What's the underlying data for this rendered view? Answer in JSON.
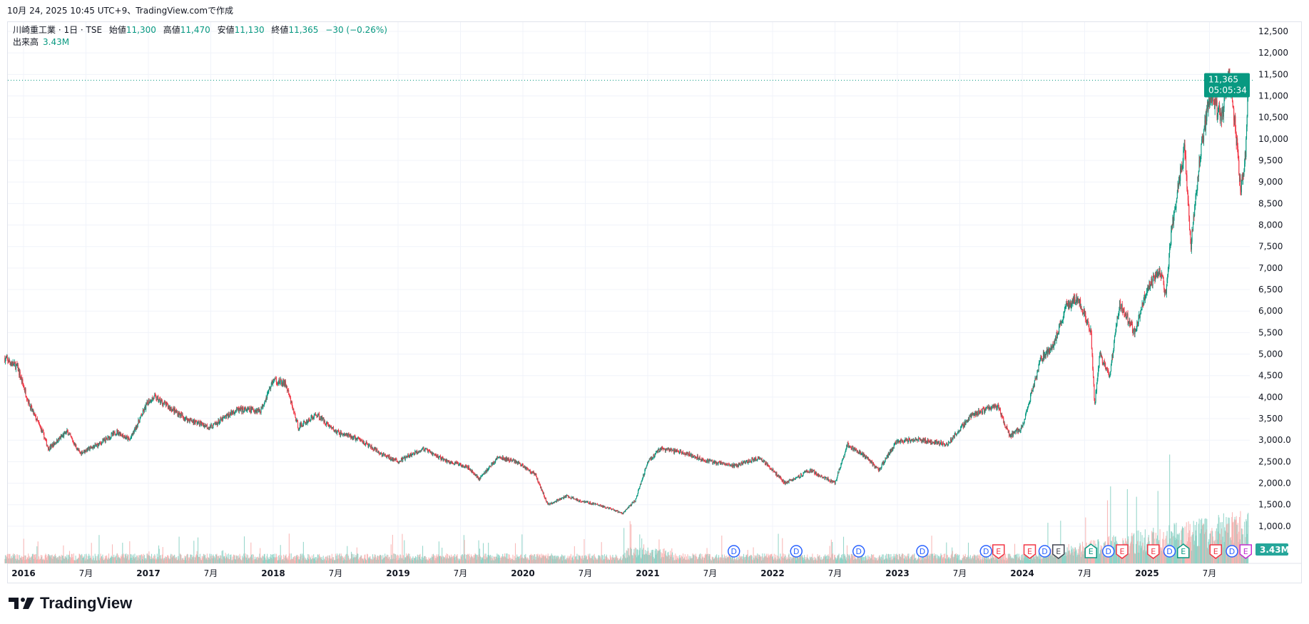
{
  "caption": "10月 24, 2025 10:45 UTC+9、TradingView.comで作成",
  "legend": {
    "symbol": "川崎重工業 · 1日 · TSE",
    "open_label": "始値",
    "open": "11,300",
    "high_label": "高値",
    "high": "11,470",
    "low_label": "安値",
    "low": "11,130",
    "close_label": "終値",
    "close": "11,365",
    "change": "−30 (−0.26%)",
    "volume_label": "出来高",
    "volume": "3.43M"
  },
  "price_tag": {
    "price": "11,365",
    "countdown": "05:05:34"
  },
  "volume_tag": "3.43M",
  "logo": "TradingView",
  "colors": {
    "up": "#089981",
    "down": "#f23645",
    "up_vol": "#7fcdbf",
    "down_vol": "#f7a9a7"
  },
  "chart_data": {
    "type": "candlestick",
    "symbol": "川崎重工業",
    "interval": "1日",
    "ylim": [
      700,
      12800
    ],
    "y_ticks": [
      "12,500",
      "12,000",
      "11,500",
      "11,000",
      "10,500",
      "10,000",
      "9,500",
      "9,000",
      "8,500",
      "8,000",
      "7,500",
      "7,000",
      "6,500",
      "6,000",
      "5,500",
      "5,000",
      "4,500",
      "4,000",
      "3,500",
      "3,000.0",
      "2,500.0",
      "2,000.0",
      "1,500.0",
      "1,000.0"
    ],
    "y_tick_values": [
      12500,
      12000,
      11500,
      11000,
      10500,
      10000,
      9500,
      9000,
      8500,
      8000,
      7500,
      7000,
      6500,
      6000,
      5500,
      5000,
      4500,
      4000,
      3500,
      3000,
      2500,
      2000,
      1500,
      1000
    ],
    "x_ticks": [
      {
        "t": 2016.0,
        "label": "2016"
      },
      {
        "t": 2016.5,
        "label": "7月"
      },
      {
        "t": 2017.0,
        "label": "2017"
      },
      {
        "t": 2017.5,
        "label": "7月"
      },
      {
        "t": 2018.0,
        "label": "2018"
      },
      {
        "t": 2018.5,
        "label": "7月"
      },
      {
        "t": 2019.0,
        "label": "2019"
      },
      {
        "t": 2019.5,
        "label": "7月"
      },
      {
        "t": 2020.0,
        "label": "2020"
      },
      {
        "t": 2020.5,
        "label": "7月"
      },
      {
        "t": 2021.0,
        "label": "2021"
      },
      {
        "t": 2021.5,
        "label": "7月"
      },
      {
        "t": 2022.0,
        "label": "2022"
      },
      {
        "t": 2022.5,
        "label": "7月"
      },
      {
        "t": 2023.0,
        "label": "2023"
      },
      {
        "t": 2023.5,
        "label": "7月"
      },
      {
        "t": 2024.0,
        "label": "2024"
      },
      {
        "t": 2024.5,
        "label": "7月"
      },
      {
        "t": 2025.0,
        "label": "2025"
      },
      {
        "t": 2025.5,
        "label": "7月"
      }
    ],
    "price_path": [
      [
        2015.85,
        4900
      ],
      [
        2015.95,
        4700
      ],
      [
        2016.05,
        3800
      ],
      [
        2016.15,
        3200
      ],
      [
        2016.2,
        2800
      ],
      [
        2016.35,
        3200
      ],
      [
        2016.45,
        2700
      ],
      [
        2016.6,
        2900
      ],
      [
        2016.75,
        3200
      ],
      [
        2016.85,
        3000
      ],
      [
        2017.0,
        3900
      ],
      [
        2017.05,
        4000
      ],
      [
        2017.3,
        3500
      ],
      [
        2017.5,
        3300
      ],
      [
        2017.7,
        3700
      ],
      [
        2017.9,
        3700
      ],
      [
        2018.0,
        4400
      ],
      [
        2018.1,
        4300
      ],
      [
        2018.2,
        3300
      ],
      [
        2018.35,
        3600
      ],
      [
        2018.5,
        3200
      ],
      [
        2018.7,
        3000
      ],
      [
        2018.85,
        2700
      ],
      [
        2019.0,
        2500
      ],
      [
        2019.2,
        2800
      ],
      [
        2019.4,
        2500
      ],
      [
        2019.55,
        2400
      ],
      [
        2019.65,
        2100
      ],
      [
        2019.8,
        2600
      ],
      [
        2019.95,
        2500
      ],
      [
        2020.1,
        2200
      ],
      [
        2020.2,
        1500
      ],
      [
        2020.35,
        1700
      ],
      [
        2020.45,
        1600
      ],
      [
        2020.6,
        1500
      ],
      [
        2020.8,
        1300
      ],
      [
        2020.9,
        1600
      ],
      [
        2021.0,
        2500
      ],
      [
        2021.1,
        2800
      ],
      [
        2021.3,
        2700
      ],
      [
        2021.5,
        2500
      ],
      [
        2021.7,
        2400
      ],
      [
        2021.9,
        2600
      ],
      [
        2022.1,
        2000
      ],
      [
        2022.3,
        2300
      ],
      [
        2022.5,
        2000
      ],
      [
        2022.6,
        2900
      ],
      [
        2022.75,
        2600
      ],
      [
        2022.85,
        2300
      ],
      [
        2023.0,
        3000
      ],
      [
        2023.2,
        3000
      ],
      [
        2023.4,
        2900
      ],
      [
        2023.6,
        3600
      ],
      [
        2023.7,
        3700
      ],
      [
        2023.8,
        3800
      ],
      [
        2023.9,
        3100
      ],
      [
        2024.0,
        3300
      ],
      [
        2024.15,
        4900
      ],
      [
        2024.25,
        5200
      ],
      [
        2024.35,
        6100
      ],
      [
        2024.45,
        6300
      ],
      [
        2024.55,
        5500
      ],
      [
        2024.58,
        3800
      ],
      [
        2024.62,
        5000
      ],
      [
        2024.7,
        4500
      ],
      [
        2024.78,
        6200
      ],
      [
        2024.9,
        5500
      ],
      [
        2025.0,
        6500
      ],
      [
        2025.1,
        7000
      ],
      [
        2025.15,
        6400
      ],
      [
        2025.2,
        8000
      ],
      [
        2025.3,
        9800
      ],
      [
        2025.35,
        7500
      ],
      [
        2025.42,
        9500
      ],
      [
        2025.5,
        11000
      ],
      [
        2025.6,
        10500
      ],
      [
        2025.65,
        11500
      ],
      [
        2025.7,
        10500
      ],
      [
        2025.75,
        8800
      ],
      [
        2025.79,
        9700
      ],
      [
        2025.81,
        11365
      ]
    ],
    "last_price": 11365,
    "events": [
      {
        "t": 2021.69,
        "type": "D"
      },
      {
        "t": 2022.19,
        "type": "D"
      },
      {
        "t": 2022.69,
        "type": "D"
      },
      {
        "t": 2023.2,
        "type": "D"
      },
      {
        "t": 2023.71,
        "type": "D"
      },
      {
        "t": 2023.81,
        "type": "E",
        "style": "red"
      },
      {
        "t": 2024.06,
        "type": "E",
        "style": "red"
      },
      {
        "t": 2024.18,
        "type": "D"
      },
      {
        "t": 2024.29,
        "type": "E",
        "style": "dark"
      },
      {
        "t": 2024.55,
        "type": "E",
        "style": "green"
      },
      {
        "t": 2024.69,
        "type": "D"
      },
      {
        "t": 2024.8,
        "type": "E",
        "style": "red"
      },
      {
        "t": 2025.05,
        "type": "E",
        "style": "red"
      },
      {
        "t": 2025.18,
        "type": "D"
      },
      {
        "t": 2025.29,
        "type": "E",
        "style": "green"
      },
      {
        "t": 2025.55,
        "type": "E",
        "style": "red"
      },
      {
        "t": 2025.68,
        "type": "D"
      },
      {
        "t": 2025.79,
        "type": "E",
        "style": "purple"
      }
    ]
  }
}
